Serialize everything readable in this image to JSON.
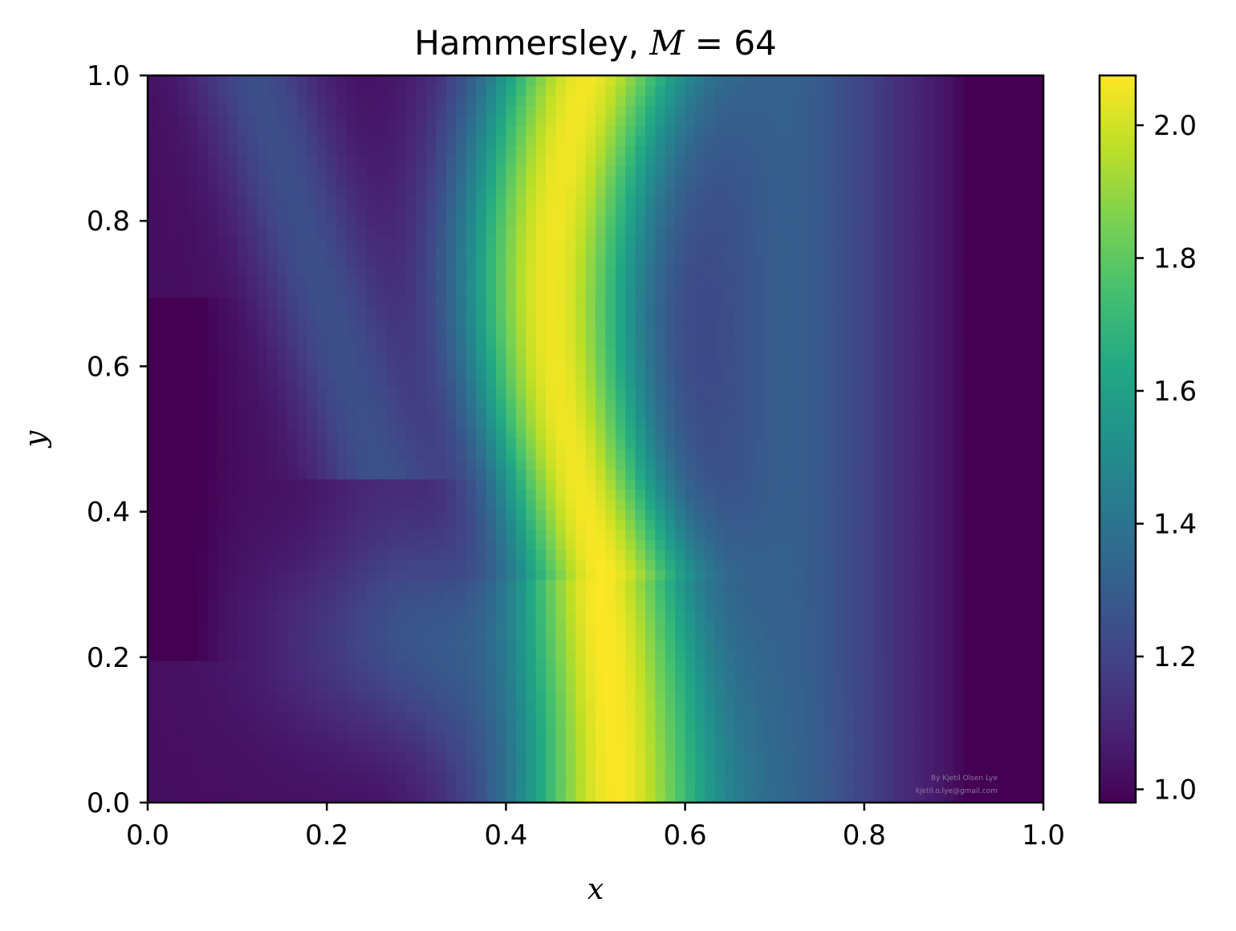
{
  "chart_data": {
    "type": "heatmap",
    "title": "Hammersley, M = 64",
    "title_parts": {
      "prefix": "Hammersley, ",
      "var": "M",
      "eq": " = 64"
    },
    "xlabel": "x",
    "ylabel": "y",
    "xlim": [
      0.0,
      1.0
    ],
    "ylim": [
      0.0,
      1.0
    ],
    "xticks": [
      "0.0",
      "0.2",
      "0.4",
      "0.6",
      "0.8",
      "1.0"
    ],
    "yticks": [
      "0.0",
      "0.2",
      "0.4",
      "0.6",
      "0.8",
      "1.0"
    ],
    "colormap": "viridis",
    "colorbar": {
      "range": [
        0.98,
        2.075
      ],
      "ticks": [
        "1.0",
        "1.2",
        "1.4",
        "1.6",
        "1.8",
        "2.0"
      ],
      "tick_values": [
        1.0,
        1.2,
        1.4,
        1.6,
        1.8,
        2.0
      ]
    },
    "grid": false,
    "watermark": [
      "By Kjetil Olsen Lye",
      "kjetil.o.lye@gmail.com"
    ]
  }
}
